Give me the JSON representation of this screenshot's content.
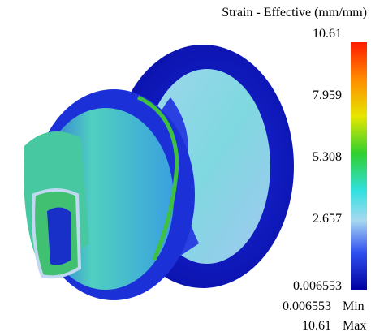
{
  "legend": {
    "title": "Strain - Effective (mm/mm)",
    "ticks": [
      "10.61",
      "7.959",
      "5.308",
      "2.657",
      "0.006553"
    ],
    "min": {
      "value": "0.006553",
      "label": "Min"
    },
    "max": {
      "value": "10.61",
      "label": "Max"
    }
  }
}
